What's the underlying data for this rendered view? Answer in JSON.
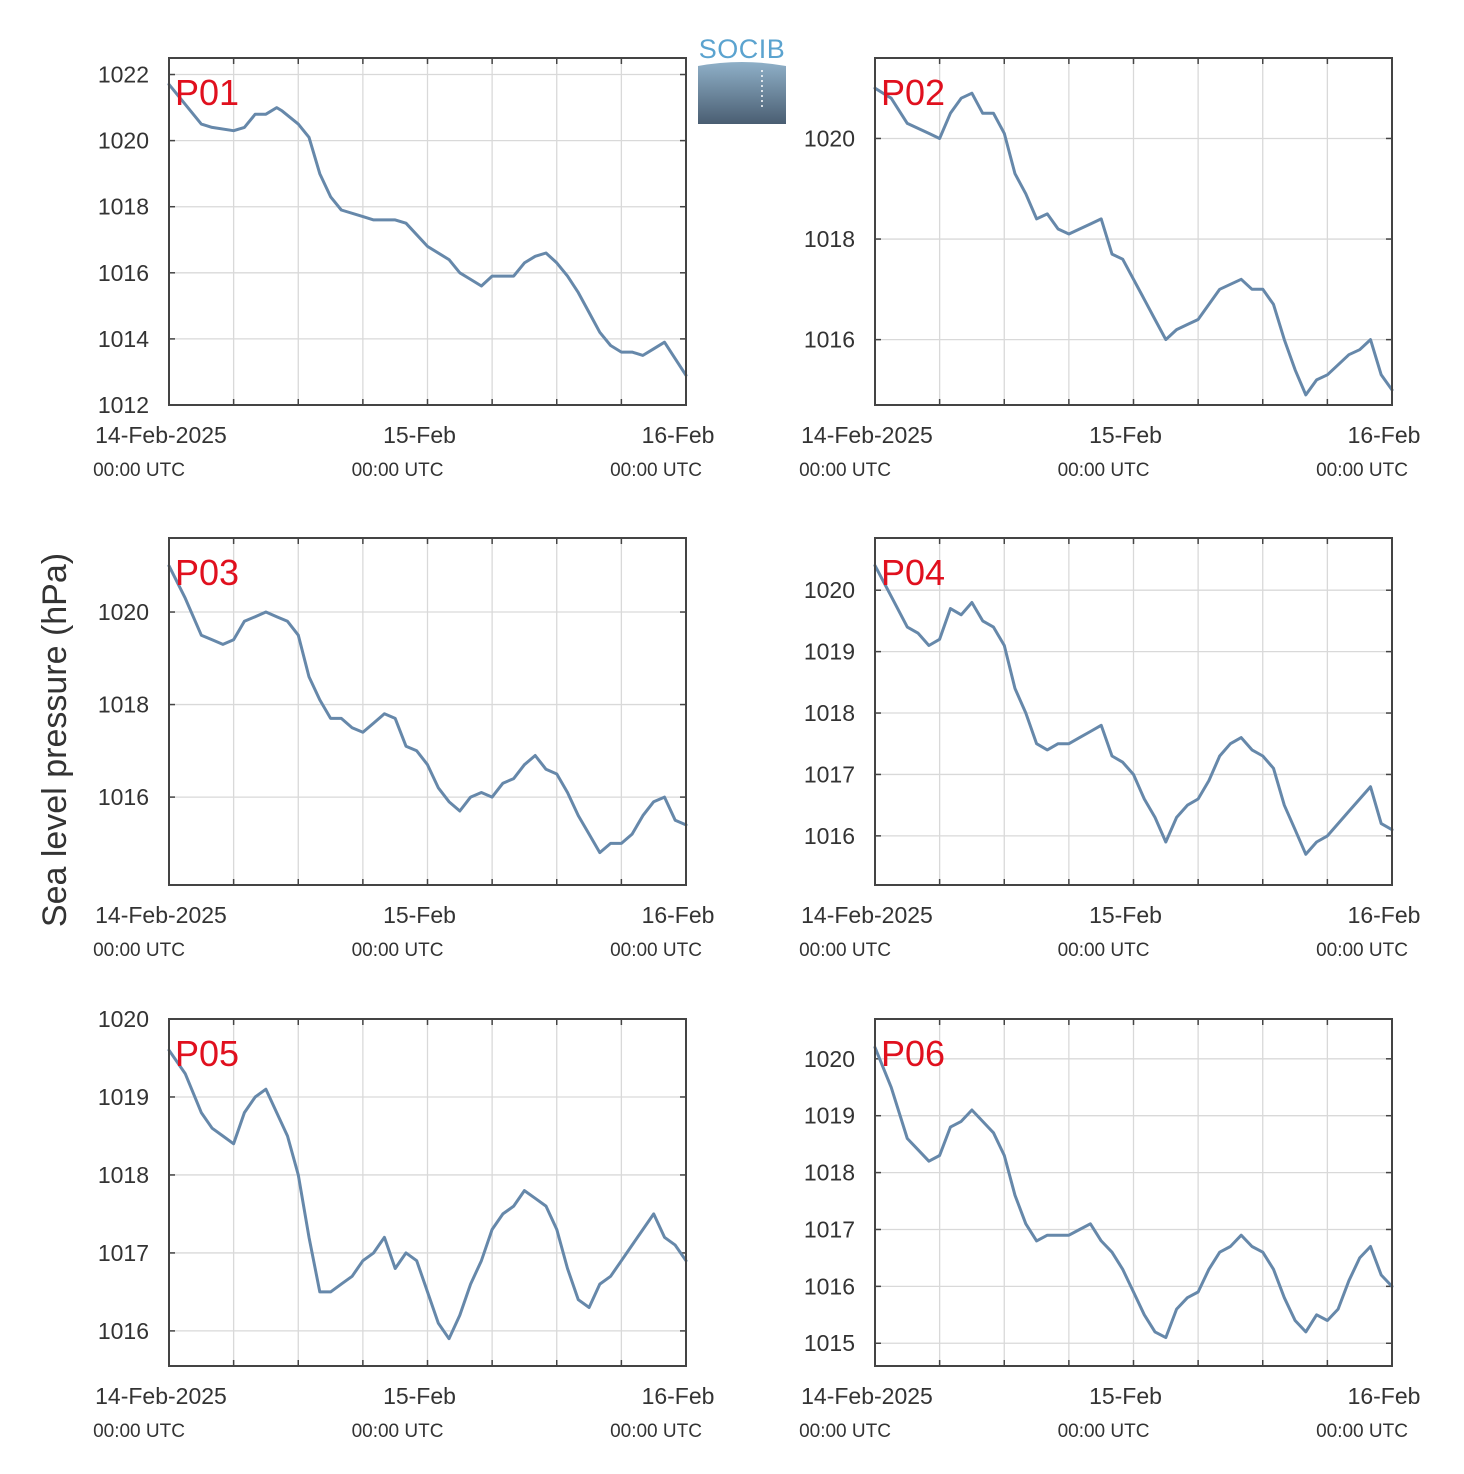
{
  "ylabel": "Sea level pressure (hPa)",
  "logo": {
    "text": "SOCIB",
    "text_color": "#5ba3cf"
  },
  "colors": {
    "line": "#6688aa",
    "panel_label": "#e0101e",
    "grid": "#d9d9d9",
    "axis": "#444444"
  },
  "chart_data": [
    {
      "type": "line",
      "label": "P01",
      "xlim": [
        "2025-02-14 00:00 UTC",
        "2025-02-16 00:00 UTC"
      ],
      "x_ticks": [
        {
          "date": "14-Feb-2025",
          "time": "00:00 UTC"
        },
        {
          "date": "15-Feb",
          "time": "00:00 UTC"
        },
        {
          "date": "16-Feb",
          "time": "00:00 UTC"
        }
      ],
      "ylim": [
        1012,
        1022.5
      ],
      "y_ticks": [
        1012,
        1014,
        1016,
        1018,
        1020,
        1022
      ],
      "x_hours": [
        0,
        1.5,
        3,
        4,
        6,
        7,
        8,
        9,
        10,
        10.5,
        12,
        13,
        14,
        15,
        16,
        18,
        19,
        21,
        22,
        24,
        26,
        27,
        28,
        29,
        30,
        32,
        33,
        34,
        35,
        36,
        37,
        38,
        39,
        40,
        41,
        42,
        43,
        44,
        45,
        46,
        47,
        48
      ],
      "values": [
        1021.7,
        1021.1,
        1020.5,
        1020.4,
        1020.3,
        1020.4,
        1020.8,
        1020.8,
        1021.0,
        1020.9,
        1020.5,
        1020.1,
        1019.0,
        1018.3,
        1017.9,
        1017.7,
        1017.6,
        1017.6,
        1017.5,
        1016.8,
        1016.4,
        1016.0,
        1015.8,
        1015.6,
        1015.9,
        1015.9,
        1016.3,
        1016.5,
        1016.6,
        1016.3,
        1015.9,
        1015.4,
        1014.8,
        1014.2,
        1013.8,
        1013.6,
        1013.6,
        1013.5,
        1013.7,
        1013.9,
        1013.4,
        1012.9
      ]
    },
    {
      "type": "line",
      "label": "P02",
      "xlim": [
        "2025-02-14 00:00 UTC",
        "2025-02-16 00:00 UTC"
      ],
      "x_ticks": [
        {
          "date": "14-Feb-2025",
          "time": "00:00 UTC"
        },
        {
          "date": "15-Feb",
          "time": "00:00 UTC"
        },
        {
          "date": "16-Feb",
          "time": "00:00 UTC"
        }
      ],
      "ylim": [
        1014.7,
        1021.6
      ],
      "y_ticks": [
        1016,
        1018,
        1020
      ],
      "x_hours": [
        0,
        1.5,
        3,
        4,
        5,
        6,
        7,
        8,
        9,
        10,
        11,
        12,
        13,
        14,
        15,
        16,
        17,
        18,
        19,
        20,
        21,
        22,
        23,
        24,
        25,
        26,
        27,
        28,
        29,
        30,
        31,
        32,
        33,
        34,
        35,
        36,
        37,
        38,
        39,
        40,
        41,
        42,
        43,
        44,
        45,
        46,
        47,
        48
      ],
      "values": [
        1021.0,
        1020.8,
        1020.3,
        1020.2,
        1020.1,
        1020.0,
        1020.5,
        1020.8,
        1020.9,
        1020.5,
        1020.5,
        1020.1,
        1019.3,
        1018.9,
        1018.4,
        1018.5,
        1018.2,
        1018.1,
        1018.2,
        1018.3,
        1018.4,
        1017.7,
        1017.6,
        1017.2,
        1016.8,
        1016.4,
        1016.0,
        1016.2,
        1016.3,
        1016.4,
        1016.7,
        1017.0,
        1017.1,
        1017.2,
        1017.0,
        1017.0,
        1016.7,
        1016.0,
        1015.4,
        1014.9,
        1015.2,
        1015.3,
        1015.5,
        1015.7,
        1015.8,
        1016.0,
        1015.3,
        1015.0
      ]
    },
    {
      "type": "line",
      "label": "P03",
      "xlim": [
        "2025-02-14 00:00 UTC",
        "2025-02-16 00:00 UTC"
      ],
      "x_ticks": [
        {
          "date": "14-Feb-2025",
          "time": "00:00 UTC"
        },
        {
          "date": "15-Feb",
          "time": "00:00 UTC"
        },
        {
          "date": "16-Feb",
          "time": "00:00 UTC"
        }
      ],
      "ylim": [
        1014.1,
        1021.6
      ],
      "y_ticks": [
        1016,
        1018,
        1020
      ],
      "x_hours": [
        0,
        1.5,
        3,
        4,
        5,
        6,
        7,
        8,
        9,
        10,
        11,
        12,
        13,
        14,
        15,
        16,
        17,
        18,
        19,
        20,
        21,
        22,
        23,
        24,
        25,
        26,
        27,
        28,
        29,
        30,
        31,
        32,
        33,
        34,
        35,
        36,
        37,
        38,
        39,
        40,
        41,
        42,
        43,
        44,
        45,
        46,
        47,
        48
      ],
      "values": [
        1021.0,
        1020.3,
        1019.5,
        1019.4,
        1019.3,
        1019.4,
        1019.8,
        1019.9,
        1020.0,
        1019.9,
        1019.8,
        1019.5,
        1018.6,
        1018.1,
        1017.7,
        1017.7,
        1017.5,
        1017.4,
        1017.6,
        1017.8,
        1017.7,
        1017.1,
        1017.0,
        1016.7,
        1016.2,
        1015.9,
        1015.7,
        1016.0,
        1016.1,
        1016.0,
        1016.3,
        1016.4,
        1016.7,
        1016.9,
        1016.6,
        1016.5,
        1016.1,
        1015.6,
        1015.2,
        1014.8,
        1015.0,
        1015.0,
        1015.2,
        1015.6,
        1015.9,
        1016.0,
        1015.5,
        1015.4
      ]
    },
    {
      "type": "line",
      "label": "P04",
      "xlim": [
        "2025-02-14 00:00 UTC",
        "2025-02-16 00:00 UTC"
      ],
      "x_ticks": [
        {
          "date": "14-Feb-2025",
          "time": "00:00 UTC"
        },
        {
          "date": "15-Feb",
          "time": "00:00 UTC"
        },
        {
          "date": "16-Feb",
          "time": "00:00 UTC"
        }
      ],
      "ylim": [
        1015.2,
        1020.85
      ],
      "y_ticks": [
        1016,
        1017,
        1018,
        1019,
        1020
      ],
      "x_hours": [
        0,
        1.5,
        3,
        4,
        5,
        6,
        7,
        8,
        9,
        10,
        11,
        12,
        13,
        14,
        15,
        16,
        17,
        18,
        19,
        20,
        21,
        22,
        23,
        24,
        25,
        26,
        27,
        28,
        29,
        30,
        31,
        32,
        33,
        34,
        35,
        36,
        37,
        38,
        39,
        40,
        41,
        42,
        43,
        44,
        45,
        46,
        47,
        48
      ],
      "values": [
        1020.4,
        1019.9,
        1019.4,
        1019.3,
        1019.1,
        1019.2,
        1019.7,
        1019.6,
        1019.8,
        1019.5,
        1019.4,
        1019.1,
        1018.4,
        1018.0,
        1017.5,
        1017.4,
        1017.5,
        1017.5,
        1017.6,
        1017.7,
        1017.8,
        1017.3,
        1017.2,
        1017.0,
        1016.6,
        1016.3,
        1015.9,
        1016.3,
        1016.5,
        1016.6,
        1016.9,
        1017.3,
        1017.5,
        1017.6,
        1017.4,
        1017.3,
        1017.1,
        1016.5,
        1016.1,
        1015.7,
        1015.9,
        1016.0,
        1016.2,
        1016.4,
        1016.6,
        1016.8,
        1016.2,
        1016.1
      ]
    },
    {
      "type": "line",
      "label": "P05",
      "xlim": [
        "2025-02-14 00:00 UTC",
        "2025-02-16 00:00 UTC"
      ],
      "x_ticks": [
        {
          "date": "14-Feb-2025",
          "time": "00:00 UTC"
        },
        {
          "date": "15-Feb",
          "time": "00:00 UTC"
        },
        {
          "date": "16-Feb",
          "time": "00:00 UTC"
        }
      ],
      "ylim": [
        1015.55,
        1020
      ],
      "y_ticks": [
        1016,
        1017,
        1018,
        1019,
        1020
      ],
      "x_hours": [
        0,
        1.5,
        3,
        4,
        5,
        6,
        7,
        8,
        9,
        10,
        11,
        12,
        13,
        14,
        15,
        16,
        17,
        18,
        19,
        20,
        21,
        22,
        23,
        24,
        25,
        26,
        27,
        28,
        29,
        30,
        31,
        32,
        33,
        34,
        35,
        36,
        37,
        38,
        39,
        40,
        41,
        42,
        43,
        44,
        45,
        46,
        47,
        48
      ],
      "values": [
        1019.6,
        1019.3,
        1018.8,
        1018.6,
        1018.5,
        1018.4,
        1018.8,
        1019.0,
        1019.1,
        1018.8,
        1018.5,
        1018.0,
        1017.2,
        1016.5,
        1016.5,
        1016.6,
        1016.7,
        1016.9,
        1017.0,
        1017.2,
        1016.8,
        1017.0,
        1016.9,
        1016.5,
        1016.1,
        1015.9,
        1016.2,
        1016.6,
        1016.9,
        1017.3,
        1017.5,
        1017.6,
        1017.8,
        1017.7,
        1017.6,
        1017.3,
        1016.8,
        1016.4,
        1016.3,
        1016.6,
        1016.7,
        1016.9,
        1017.1,
        1017.3,
        1017.5,
        1017.2,
        1017.1,
        1016.9
      ]
    },
    {
      "type": "line",
      "label": "P06",
      "xlim": [
        "2025-02-14 00:00 UTC",
        "2025-02-16 00:00 UTC"
      ],
      "x_ticks": [
        {
          "date": "14-Feb-2025",
          "time": "00:00 UTC"
        },
        {
          "date": "15-Feb",
          "time": "00:00 UTC"
        },
        {
          "date": "16-Feb",
          "time": "00:00 UTC"
        }
      ],
      "ylim": [
        1014.6,
        1020.7
      ],
      "y_ticks": [
        1015,
        1016,
        1017,
        1018,
        1019,
        1020
      ],
      "x_hours": [
        0,
        1.5,
        3,
        4,
        5,
        6,
        7,
        8,
        9,
        10,
        11,
        12,
        13,
        14,
        15,
        16,
        17,
        18,
        19,
        20,
        21,
        22,
        23,
        24,
        25,
        26,
        27,
        28,
        29,
        30,
        31,
        32,
        33,
        34,
        35,
        36,
        37,
        38,
        39,
        40,
        41,
        42,
        43,
        44,
        45,
        46,
        47,
        48
      ],
      "values": [
        1020.2,
        1019.5,
        1018.6,
        1018.4,
        1018.2,
        1018.3,
        1018.8,
        1018.9,
        1019.1,
        1018.9,
        1018.7,
        1018.3,
        1017.6,
        1017.1,
        1016.8,
        1016.9,
        1016.9,
        1016.9,
        1017.0,
        1017.1,
        1016.8,
        1016.6,
        1016.3,
        1015.9,
        1015.5,
        1015.2,
        1015.1,
        1015.6,
        1015.8,
        1015.9,
        1016.3,
        1016.6,
        1016.7,
        1016.9,
        1016.7,
        1016.6,
        1016.3,
        1015.8,
        1015.4,
        1015.2,
        1015.5,
        1015.4,
        1015.6,
        1016.1,
        1016.5,
        1016.7,
        1016.2,
        1016.0
      ]
    }
  ]
}
